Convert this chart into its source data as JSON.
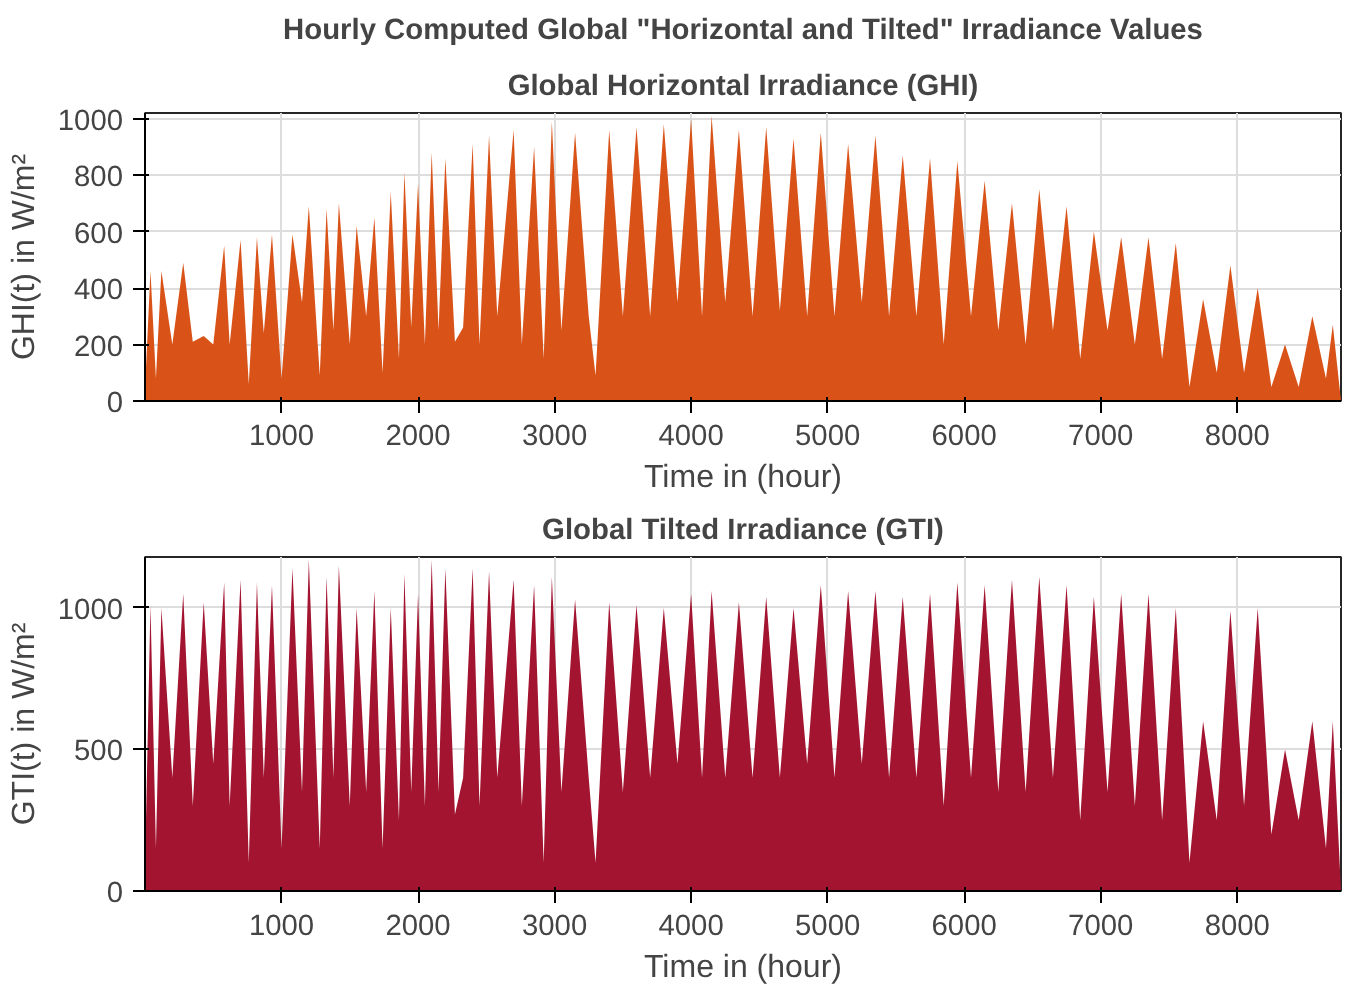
{
  "chart_data": [
    {
      "type": "area",
      "title": "Hourly Computed Global \"Horizontal and Tilted\" Irradiance Values",
      "subtitle": "Global Horizontal Irradiance (GHI)",
      "xlabel": "Time in (hour)",
      "ylabel": "GHI(t) in W/m²",
      "xlim": [
        0,
        8760
      ],
      "xticks": [
        1000,
        2000,
        3000,
        4000,
        5000,
        6000,
        7000,
        8000
      ],
      "ylim": [
        0,
        1020
      ],
      "yticks": [
        0,
        200,
        400,
        600,
        800,
        1000
      ],
      "grid": true,
      "series": [
        {
          "color": "#d95319",
          "x": [
            0,
            40,
            80,
            120,
            200,
            280,
            350,
            430,
            500,
            580,
            620,
            700,
            760,
            820,
            870,
            930,
            1000,
            1080,
            1150,
            1200,
            1280,
            1330,
            1380,
            1420,
            1500,
            1550,
            1620,
            1680,
            1740,
            1800,
            1860,
            1900,
            1950,
            2000,
            2050,
            2100,
            2150,
            2200,
            2270,
            2330,
            2400,
            2450,
            2520,
            2580,
            2700,
            2760,
            2850,
            2920,
            2980,
            3050,
            3150,
            3250,
            3300,
            3400,
            3500,
            3600,
            3700,
            3800,
            3900,
            4000,
            4080,
            4150,
            4250,
            4350,
            4450,
            4550,
            4650,
            4750,
            4850,
            4950,
            5050,
            5150,
            5250,
            5350,
            5450,
            5550,
            5650,
            5750,
            5850,
            5950,
            6050,
            6150,
            6250,
            6350,
            6450,
            6550,
            6650,
            6750,
            6850,
            6950,
            7050,
            7150,
            7250,
            7350,
            7450,
            7550,
            7650,
            7750,
            7850,
            7950,
            8050,
            8150,
            8250,
            8350,
            8450,
            8550,
            8650,
            8700,
            8760
          ],
          "values": [
            40,
            460,
            80,
            460,
            200,
            490,
            210,
            230,
            200,
            550,
            200,
            570,
            60,
            580,
            240,
            590,
            80,
            590,
            350,
            690,
            90,
            680,
            250,
            700,
            200,
            620,
            300,
            650,
            100,
            740,
            150,
            810,
            260,
            770,
            200,
            880,
            250,
            860,
            210,
            260,
            910,
            200,
            940,
            300,
            960,
            200,
            900,
            150,
            990,
            250,
            950,
            300,
            90,
            960,
            300,
            970,
            300,
            980,
            350,
            1000,
            300,
            1010,
            350,
            960,
            300,
            970,
            320,
            930,
            300,
            950,
            300,
            910,
            350,
            940,
            300,
            870,
            300,
            860,
            200,
            850,
            300,
            780,
            250,
            700,
            200,
            750,
            250,
            690,
            150,
            600,
            250,
            580,
            200,
            580,
            150,
            560,
            50,
            360,
            100,
            480,
            100,
            400,
            50,
            200,
            50,
            300,
            80,
            270,
            0
          ]
        }
      ]
    },
    {
      "type": "area",
      "title": "Global Tilted Irradiance (GTI)",
      "xlabel": "Time in (hour)",
      "ylabel": "GTI(t) in W/m²",
      "xlim": [
        0,
        8760
      ],
      "xticks": [
        1000,
        2000,
        3000,
        4000,
        5000,
        6000,
        7000,
        8000
      ],
      "ylim": [
        0,
        1180
      ],
      "yticks": [
        0,
        500,
        1000
      ],
      "grid": true,
      "series": [
        {
          "color": "#a2142f",
          "x": [
            0,
            40,
            80,
            120,
            200,
            280,
            350,
            430,
            500,
            580,
            620,
            700,
            760,
            820,
            870,
            930,
            1000,
            1080,
            1150,
            1200,
            1280,
            1330,
            1380,
            1420,
            1500,
            1550,
            1620,
            1680,
            1740,
            1800,
            1860,
            1900,
            1950,
            2000,
            2050,
            2100,
            2150,
            2200,
            2270,
            2330,
            2400,
            2450,
            2520,
            2580,
            2700,
            2760,
            2850,
            2920,
            2980,
            3050,
            3150,
            3250,
            3300,
            3400,
            3500,
            3600,
            3700,
            3800,
            3900,
            4000,
            4080,
            4150,
            4250,
            4350,
            4450,
            4550,
            4650,
            4750,
            4850,
            4950,
            5050,
            5150,
            5250,
            5350,
            5450,
            5550,
            5650,
            5750,
            5850,
            5950,
            6050,
            6150,
            6250,
            6350,
            6450,
            6550,
            6650,
            6750,
            6850,
            6950,
            7050,
            7150,
            7250,
            7350,
            7450,
            7550,
            7650,
            7750,
            7850,
            7950,
            8050,
            8150,
            8250,
            8350,
            8450,
            8550,
            8650,
            8700,
            8760
          ],
          "values": [
            80,
            1010,
            150,
            1000,
            400,
            1050,
            300,
            1020,
            450,
            1090,
            300,
            1100,
            100,
            1090,
            400,
            1080,
            150,
            1140,
            350,
            1170,
            150,
            1110,
            400,
            1150,
            300,
            1000,
            350,
            1060,
            150,
            1000,
            250,
            1120,
            350,
            1050,
            300,
            1170,
            350,
            1140,
            270,
            400,
            1140,
            300,
            1130,
            400,
            1100,
            300,
            1080,
            100,
            1110,
            350,
            1030,
            400,
            100,
            1020,
            350,
            1010,
            400,
            1000,
            450,
            1050,
            400,
            1060,
            400,
            1020,
            400,
            1040,
            400,
            1000,
            450,
            1080,
            400,
            1060,
            450,
            1060,
            400,
            1040,
            400,
            1050,
            300,
            1090,
            400,
            1080,
            350,
            1100,
            350,
            1110,
            400,
            1080,
            250,
            1040,
            350,
            1050,
            300,
            1050,
            250,
            1000,
            100,
            600,
            250,
            990,
            300,
            1000,
            200,
            500,
            250,
            600,
            150,
            600,
            0
          ]
        }
      ]
    }
  ]
}
